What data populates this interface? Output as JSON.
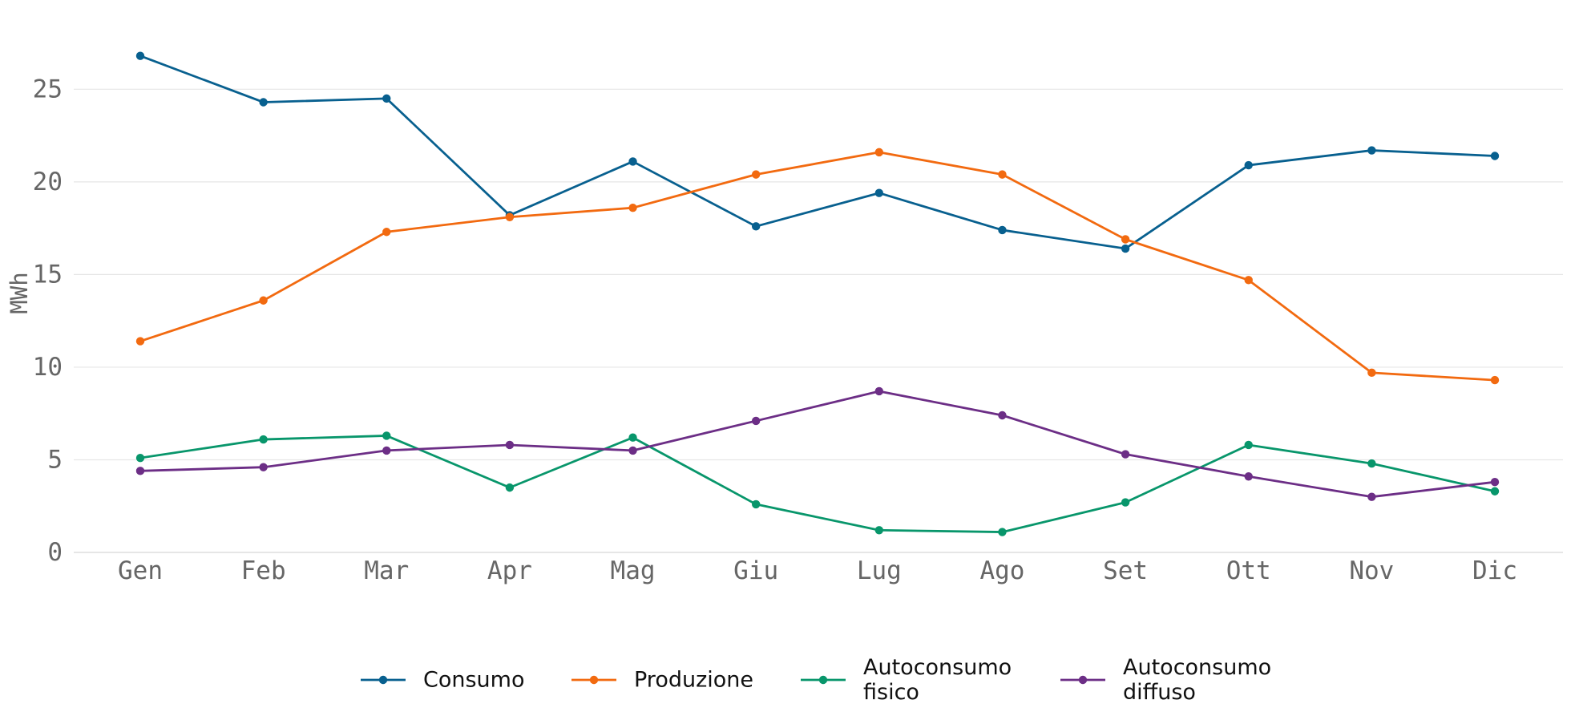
{
  "chart_data": {
    "type": "line",
    "categories": [
      "Gen",
      "Feb",
      "Mar",
      "Apr",
      "Mag",
      "Giu",
      "Lug",
      "Ago",
      "Set",
      "Ott",
      "Nov",
      "Dic"
    ],
    "ylabel": "MWh",
    "xlabel": "",
    "title": "",
    "ylim": [
      0,
      28
    ],
    "yticks": [
      0,
      5,
      10,
      15,
      20,
      25
    ],
    "grid": "horizontal",
    "legend_position": "bottom",
    "series": [
      {
        "name": "Consumo",
        "legend_lines": [
          "Consumo"
        ],
        "color": "#08608f",
        "values": [
          26.8,
          24.3,
          24.5,
          18.2,
          21.1,
          17.6,
          19.4,
          17.4,
          16.4,
          20.9,
          21.7,
          21.4
        ]
      },
      {
        "name": "Produzione",
        "legend_lines": [
          "Produzione"
        ],
        "color": "#f26a10",
        "values": [
          11.4,
          13.6,
          17.3,
          18.1,
          18.6,
          20.4,
          21.6,
          20.4,
          16.9,
          14.7,
          9.7,
          9.3
        ]
      },
      {
        "name": "Autoconsumo fisico",
        "legend_lines": [
          "Autoconsumo",
          "fisico"
        ],
        "color": "#08966b",
        "values": [
          5.1,
          6.1,
          6.3,
          3.5,
          6.2,
          2.6,
          1.2,
          1.1,
          2.7,
          5.8,
          4.8,
          3.3
        ]
      },
      {
        "name": "Autoconsumo diffuso",
        "legend_lines": [
          "Autoconsumo",
          "diffuso"
        ],
        "color": "#6c2e86",
        "values": [
          4.4,
          4.6,
          5.5,
          5.8,
          5.5,
          7.1,
          8.7,
          7.4,
          5.3,
          4.1,
          3.0,
          3.8
        ]
      }
    ]
  }
}
